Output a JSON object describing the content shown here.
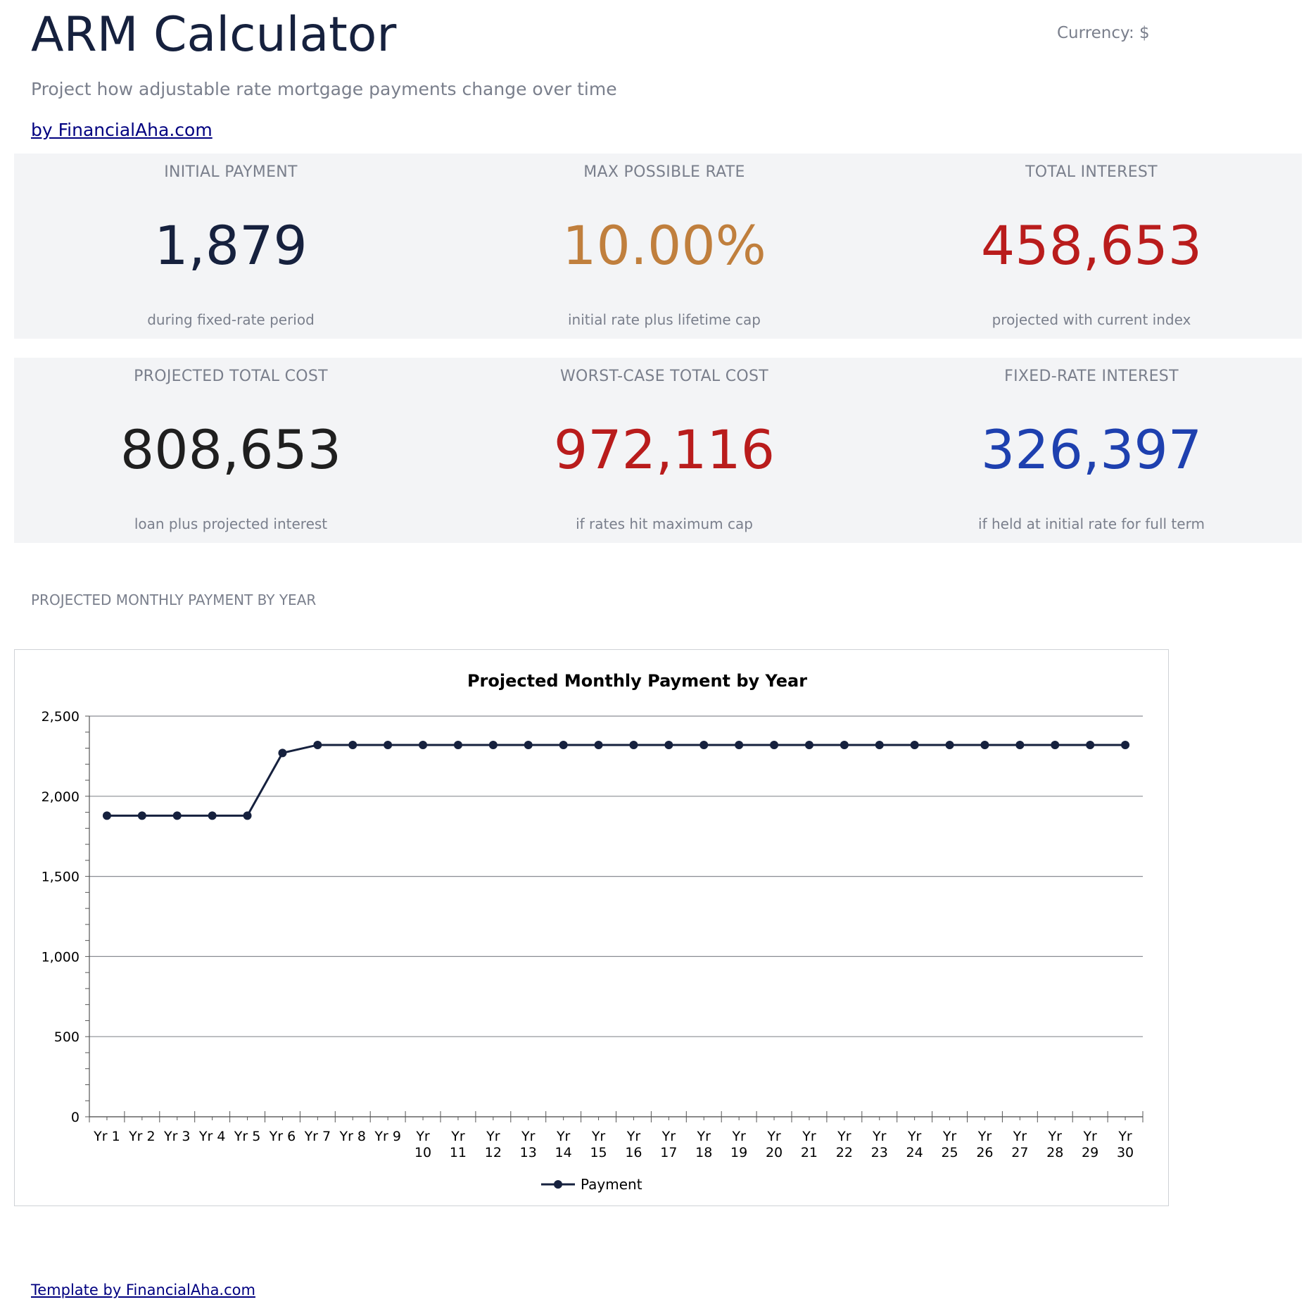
{
  "header": {
    "title": "ARM Calculator",
    "currency": "Currency: $",
    "subtitle": "Project how adjustable rate mortgage payments change over time",
    "link": "by FinancialAha.com"
  },
  "stats": [
    {
      "label": "INITIAL PAYMENT",
      "value": "1,879",
      "note": "during fixed-rate period",
      "color": "#16213e"
    },
    {
      "label": "MAX POSSIBLE RATE",
      "value": "10.00%",
      "note": "initial rate plus lifetime cap",
      "color": "#c07f3d"
    },
    {
      "label": "TOTAL INTEREST",
      "value": "458,653",
      "note": "projected with current index",
      "color": "#b91c1c"
    },
    {
      "label": "PROJECTED TOTAL COST",
      "value": "808,653",
      "note": "loan plus projected interest",
      "color": "#1f1f1f"
    },
    {
      "label": "WORST-CASE TOTAL COST",
      "value": "972,116",
      "note": "if rates hit maximum cap",
      "color": "#b91c1c"
    },
    {
      "label": "FIXED-RATE INTEREST",
      "value": "326,397",
      "note": "if held at initial rate for full term",
      "color": "#1e40af"
    }
  ],
  "section": {
    "label": "PROJECTED MONTHLY PAYMENT BY YEAR"
  },
  "chart_data": {
    "type": "line",
    "title": "Projected Monthly Payment by Year",
    "categories": [
      [
        "Yr 1"
      ],
      [
        "Yr 2"
      ],
      [
        "Yr 3"
      ],
      [
        "Yr 4"
      ],
      [
        "Yr 5"
      ],
      [
        "Yr 6"
      ],
      [
        "Yr 7"
      ],
      [
        "Yr 8"
      ],
      [
        "Yr 9"
      ],
      [
        "Yr",
        "10"
      ],
      [
        "Yr",
        "11"
      ],
      [
        "Yr",
        "12"
      ],
      [
        "Yr",
        "13"
      ],
      [
        "Yr",
        "14"
      ],
      [
        "Yr",
        "15"
      ],
      [
        "Yr",
        "16"
      ],
      [
        "Yr",
        "17"
      ],
      [
        "Yr",
        "18"
      ],
      [
        "Yr",
        "19"
      ],
      [
        "Yr",
        "20"
      ],
      [
        "Yr",
        "21"
      ],
      [
        "Yr",
        "22"
      ],
      [
        "Yr",
        "23"
      ],
      [
        "Yr",
        "24"
      ],
      [
        "Yr",
        "25"
      ],
      [
        "Yr",
        "26"
      ],
      [
        "Yr",
        "27"
      ],
      [
        "Yr",
        "28"
      ],
      [
        "Yr",
        "29"
      ],
      [
        "Yr",
        "30"
      ]
    ],
    "series": [
      {
        "name": "Payment",
        "color": "#16213e",
        "values": [
          1879,
          1879,
          1879,
          1879,
          1879,
          2270,
          2320,
          2320,
          2320,
          2320,
          2320,
          2320,
          2320,
          2320,
          2320,
          2320,
          2320,
          2320,
          2320,
          2320,
          2320,
          2320,
          2320,
          2320,
          2320,
          2320,
          2320,
          2320,
          2320,
          2320
        ]
      }
    ],
    "yticks": [
      "0",
      "500",
      "1,000",
      "1,500",
      "2,000",
      "2,500"
    ],
    "ylim": [
      0,
      2500
    ],
    "grid": true,
    "legend": "bottom"
  },
  "footer": {
    "link": "Template by FinancialAha.com"
  }
}
